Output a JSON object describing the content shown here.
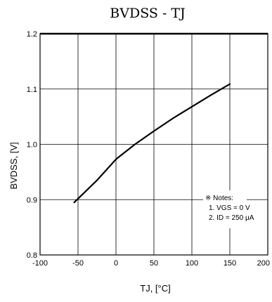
{
  "chart_data": {
    "type": "line",
    "title": "BVDSS - TJ",
    "xlabel": "TJ, [°C]",
    "ylabel": "BVDSS, [V]",
    "xlim": [
      -100,
      200
    ],
    "ylim": [
      0.8,
      1.2
    ],
    "xticks": [
      -100,
      -50,
      0,
      50,
      100,
      150,
      200
    ],
    "xtick_labels": [
      "-100",
      "-50",
      "0",
      "50",
      "100",
      "150",
      "200"
    ],
    "yticks": [
      0.8,
      0.9,
      1.0,
      1.1,
      1.2
    ],
    "ytick_labels": [
      "0.8",
      "0.9",
      "1.0",
      "1.1",
      "1.2"
    ],
    "grid": true,
    "series": [
      {
        "x": [
          -55,
          -25,
          0,
          25,
          50,
          75,
          100,
          125,
          150
        ],
        "y": [
          0.895,
          0.935,
          0.973,
          1.0,
          1.024,
          1.047,
          1.068,
          1.089,
          1.109
        ]
      }
    ],
    "annotation": {
      "heading": "※ Notes:",
      "lines": [
        "1. VGS = 0 V",
        "2. ID = 250 μA"
      ]
    }
  }
}
